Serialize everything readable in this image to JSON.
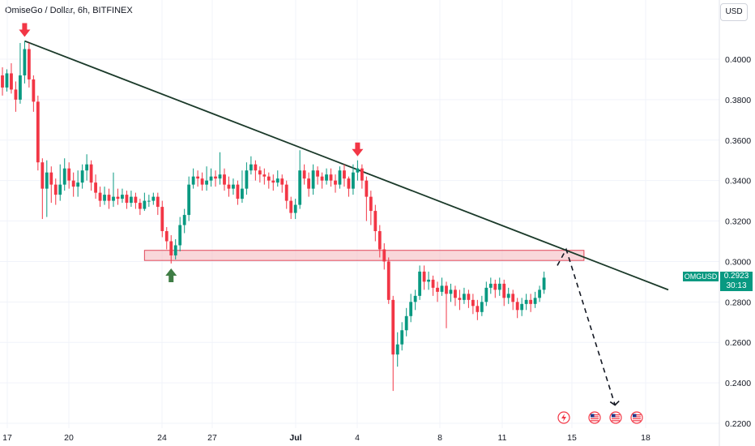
{
  "header": {
    "title": "OmiseGo / Dollar, 6h, BITFINEX",
    "currency": "USD"
  },
  "badge": {
    "symbol": "OMGUSD",
    "price": "0.2923",
    "countdown": "30:13"
  },
  "colors": {
    "up": "#089981",
    "down": "#f23645",
    "trendline": "#1b3a2a",
    "zone_fill": "#f4b6bc",
    "zone_stroke": "#e0485a"
  },
  "chart_data": {
    "type": "candlestick",
    "y_ticks": [
      "0.4000",
      "0.3800",
      "0.3600",
      "0.3400",
      "0.3200",
      "0.3000",
      "0.2800",
      "0.2600",
      "0.2400",
      "0.2200"
    ],
    "x_ticks": [
      "17",
      "20",
      "24",
      "27",
      "Jul",
      "4",
      "8",
      "11",
      "15",
      "18"
    ],
    "ylim": [
      0.22,
      0.4
    ],
    "candles": [
      [
        0.392,
        0.386,
        0.382,
        0.396
      ],
      [
        0.386,
        0.393,
        0.384,
        0.395
      ],
      [
        0.393,
        0.385,
        0.383,
        0.398
      ],
      [
        0.385,
        0.38,
        0.374,
        0.389
      ],
      [
        0.38,
        0.392,
        0.378,
        0.408
      ],
      [
        0.392,
        0.405,
        0.388,
        0.409
      ],
      [
        0.405,
        0.39,
        0.386,
        0.408
      ],
      [
        0.39,
        0.379,
        0.374,
        0.392
      ],
      [
        0.379,
        0.349,
        0.345,
        0.382
      ],
      [
        0.349,
        0.336,
        0.321,
        0.351
      ],
      [
        0.336,
        0.344,
        0.322,
        0.35
      ],
      [
        0.344,
        0.338,
        0.329,
        0.347
      ],
      [
        0.338,
        0.333,
        0.328,
        0.341
      ],
      [
        0.333,
        0.338,
        0.33,
        0.348
      ],
      [
        0.338,
        0.346,
        0.335,
        0.351
      ],
      [
        0.346,
        0.34,
        0.336,
        0.349
      ],
      [
        0.34,
        0.337,
        0.332,
        0.344
      ],
      [
        0.337,
        0.339,
        0.332,
        0.345
      ],
      [
        0.339,
        0.345,
        0.336,
        0.348
      ],
      [
        0.345,
        0.348,
        0.34,
        0.353
      ],
      [
        0.348,
        0.339,
        0.335,
        0.35
      ],
      [
        0.339,
        0.334,
        0.331,
        0.343
      ],
      [
        0.334,
        0.33,
        0.327,
        0.337
      ],
      [
        0.33,
        0.333,
        0.328,
        0.337
      ],
      [
        0.333,
        0.33,
        0.326,
        0.336
      ],
      [
        0.33,
        0.332,
        0.327,
        0.344
      ],
      [
        0.332,
        0.331,
        0.328,
        0.336
      ],
      [
        0.331,
        0.333,
        0.329,
        0.336
      ],
      [
        0.333,
        0.329,
        0.326,
        0.335
      ],
      [
        0.329,
        0.332,
        0.327,
        0.335
      ],
      [
        0.332,
        0.329,
        0.326,
        0.334
      ],
      [
        0.329,
        0.326,
        0.323,
        0.331
      ],
      [
        0.326,
        0.33,
        0.325,
        0.334
      ],
      [
        0.33,
        0.33,
        0.327,
        0.333
      ],
      [
        0.33,
        0.332,
        0.328,
        0.334
      ],
      [
        0.332,
        0.327,
        0.323,
        0.334
      ],
      [
        0.327,
        0.315,
        0.312,
        0.33
      ],
      [
        0.315,
        0.31,
        0.306,
        0.317
      ],
      [
        0.31,
        0.303,
        0.299,
        0.313
      ],
      [
        0.303,
        0.308,
        0.301,
        0.311
      ],
      [
        0.308,
        0.318,
        0.305,
        0.322
      ],
      [
        0.318,
        0.323,
        0.314,
        0.326
      ],
      [
        0.323,
        0.338,
        0.32,
        0.342
      ],
      [
        0.338,
        0.342,
        0.336,
        0.346
      ],
      [
        0.342,
        0.341,
        0.337,
        0.345
      ],
      [
        0.341,
        0.338,
        0.335,
        0.344
      ],
      [
        0.338,
        0.34,
        0.335,
        0.347
      ],
      [
        0.34,
        0.342,
        0.337,
        0.346
      ],
      [
        0.342,
        0.341,
        0.337,
        0.345
      ],
      [
        0.341,
        0.343,
        0.338,
        0.354
      ],
      [
        0.343,
        0.338,
        0.335,
        0.346
      ],
      [
        0.338,
        0.336,
        0.332,
        0.342
      ],
      [
        0.336,
        0.338,
        0.333,
        0.341
      ],
      [
        0.338,
        0.331,
        0.328,
        0.34
      ],
      [
        0.331,
        0.336,
        0.329,
        0.345
      ],
      [
        0.336,
        0.345,
        0.333,
        0.349
      ],
      [
        0.345,
        0.348,
        0.343,
        0.352
      ],
      [
        0.348,
        0.345,
        0.34,
        0.35
      ],
      [
        0.345,
        0.343,
        0.339,
        0.347
      ],
      [
        0.343,
        0.342,
        0.338,
        0.346
      ],
      [
        0.342,
        0.34,
        0.336,
        0.344
      ],
      [
        0.34,
        0.339,
        0.335,
        0.343
      ],
      [
        0.339,
        0.341,
        0.337,
        0.345
      ],
      [
        0.341,
        0.338,
        0.334,
        0.343
      ],
      [
        0.338,
        0.33,
        0.326,
        0.34
      ],
      [
        0.33,
        0.324,
        0.321,
        0.332
      ],
      [
        0.324,
        0.328,
        0.321,
        0.331
      ],
      [
        0.328,
        0.345,
        0.326,
        0.355
      ],
      [
        0.345,
        0.341,
        0.338,
        0.348
      ],
      [
        0.341,
        0.336,
        0.332,
        0.344
      ],
      [
        0.336,
        0.345,
        0.333,
        0.348
      ],
      [
        0.345,
        0.342,
        0.338,
        0.347
      ],
      [
        0.342,
        0.34,
        0.336,
        0.344
      ],
      [
        0.34,
        0.343,
        0.338,
        0.346
      ],
      [
        0.343,
        0.34,
        0.337,
        0.346
      ],
      [
        0.34,
        0.338,
        0.334,
        0.343
      ],
      [
        0.338,
        0.345,
        0.336,
        0.347
      ],
      [
        0.345,
        0.341,
        0.337,
        0.348
      ],
      [
        0.341,
        0.336,
        0.332,
        0.342
      ],
      [
        0.336,
        0.344,
        0.333,
        0.348
      ],
      [
        0.344,
        0.346,
        0.34,
        0.35
      ],
      [
        0.346,
        0.34,
        0.336,
        0.348
      ],
      [
        0.34,
        0.332,
        0.32,
        0.342
      ],
      [
        0.332,
        0.325,
        0.318,
        0.335
      ],
      [
        0.325,
        0.315,
        0.31,
        0.328
      ],
      [
        0.315,
        0.306,
        0.302,
        0.318
      ],
      [
        0.306,
        0.3,
        0.296,
        0.309
      ],
      [
        0.3,
        0.281,
        0.279,
        0.302
      ],
      [
        0.281,
        0.254,
        0.236,
        0.283
      ],
      [
        0.254,
        0.259,
        0.248,
        0.265
      ],
      [
        0.259,
        0.266,
        0.256,
        0.27
      ],
      [
        0.266,
        0.273,
        0.263,
        0.277
      ],
      [
        0.273,
        0.28,
        0.27,
        0.284
      ],
      [
        0.28,
        0.283,
        0.276,
        0.286
      ],
      [
        0.283,
        0.295,
        0.281,
        0.298
      ],
      [
        0.295,
        0.29,
        0.286,
        0.298
      ],
      [
        0.29,
        0.291,
        0.286,
        0.295
      ],
      [
        0.291,
        0.287,
        0.283,
        0.293
      ],
      [
        0.287,
        0.285,
        0.28,
        0.29
      ],
      [
        0.285,
        0.288,
        0.283,
        0.292
      ],
      [
        0.288,
        0.284,
        0.267,
        0.29
      ],
      [
        0.284,
        0.286,
        0.28,
        0.289
      ],
      [
        0.286,
        0.282,
        0.278,
        0.288
      ],
      [
        0.282,
        0.281,
        0.276,
        0.286
      ],
      [
        0.281,
        0.284,
        0.279,
        0.287
      ],
      [
        0.284,
        0.281,
        0.277,
        0.286
      ],
      [
        0.281,
        0.278,
        0.274,
        0.284
      ],
      [
        0.278,
        0.275,
        0.271,
        0.281
      ],
      [
        0.275,
        0.28,
        0.273,
        0.283
      ],
      [
        0.28,
        0.287,
        0.278,
        0.29
      ],
      [
        0.287,
        0.289,
        0.284,
        0.292
      ],
      [
        0.289,
        0.286,
        0.282,
        0.291
      ],
      [
        0.286,
        0.289,
        0.283,
        0.292
      ],
      [
        0.289,
        0.282,
        0.278,
        0.291
      ],
      [
        0.282,
        0.284,
        0.279,
        0.287
      ],
      [
        0.284,
        0.28,
        0.276,
        0.286
      ],
      [
        0.28,
        0.276,
        0.272,
        0.282
      ],
      [
        0.276,
        0.279,
        0.273,
        0.282
      ],
      [
        0.279,
        0.281,
        0.276,
        0.284
      ],
      [
        0.281,
        0.279,
        0.275,
        0.284
      ],
      [
        0.279,
        0.282,
        0.277,
        0.285
      ],
      [
        0.282,
        0.286,
        0.28,
        0.288
      ],
      [
        0.286,
        0.292,
        0.284,
        0.295
      ]
    ],
    "trendline": {
      "from": [
        "17",
        0.409
      ],
      "to": [
        0.286
      ]
    },
    "support_zone": {
      "price_low": 0.3005,
      "price_high": 0.3055
    },
    "projection": {
      "points": [
        0.298,
        0.306,
        0.229
      ]
    },
    "markers": [
      {
        "type": "down-arrow",
        "candle": 5,
        "color": "#f23645"
      },
      {
        "type": "down-arrow",
        "candle": 80,
        "color": "#f23645"
      },
      {
        "type": "up-arrow",
        "candle": 38,
        "color": "#3f7d45"
      }
    ],
    "event_icons": [
      "flash-event-icon",
      "us-flag-event-icon",
      "us-flag-event-icon",
      "us-flag-event-icon"
    ]
  }
}
